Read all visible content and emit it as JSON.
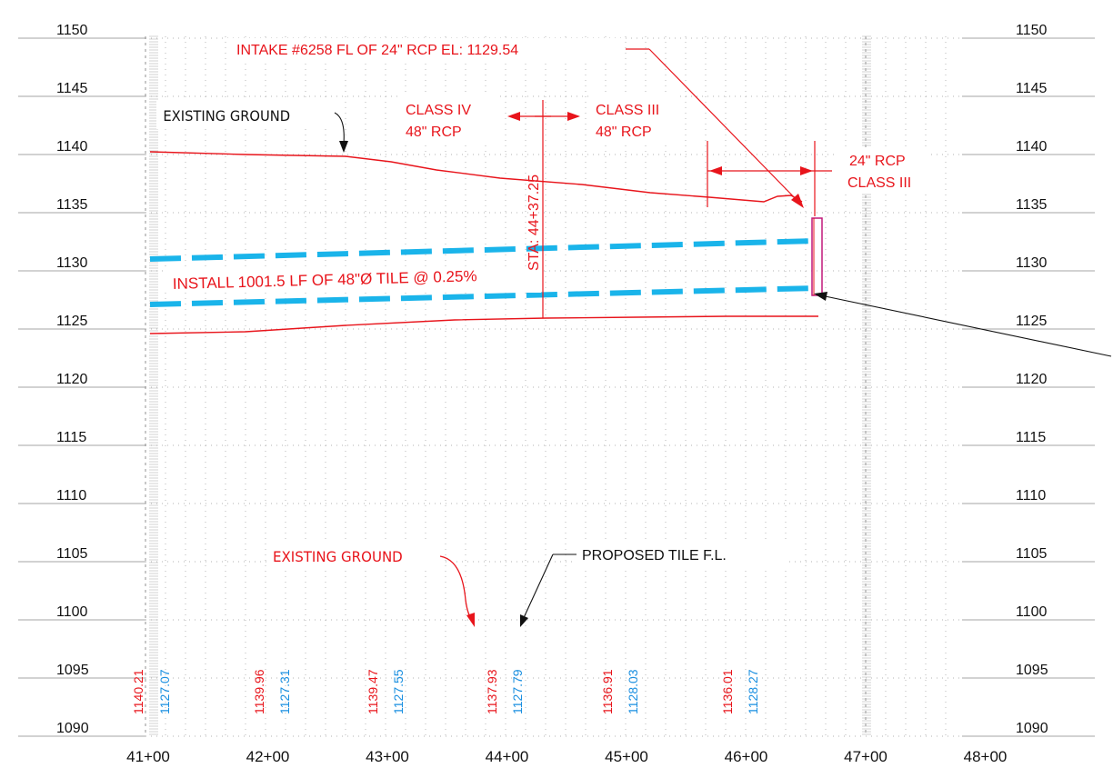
{
  "profile": {
    "elevation_labels": [
      "1150",
      "1145",
      "1140",
      "1135",
      "1130",
      "1125",
      "1120",
      "1115",
      "1110",
      "1105",
      "1100",
      "1095",
      "1090"
    ],
    "station_labels": [
      "41+00",
      "42+00",
      "43+00",
      "44+00",
      "45+00",
      "46+00",
      "47+00",
      "48+00"
    ],
    "annotations": {
      "intake": "INTAKE #6258 FL OF 24\" RCP  EL: 1129.54",
      "existing_ground_top": "EXISTING GROUND",
      "class_iv": "CLASS IV",
      "class_iv_pipe": "48\" RCP",
      "class_iii": "CLASS III",
      "class_iii_pipe": "48\" RCP",
      "station_callout": "STA: 44+37.25",
      "rcp24": "24\" RCP",
      "rcp24_class": "CLASS III",
      "install": "INSTALL 1001.5 LF OF 48\"Ø TILE @ 0.25%",
      "existing_ground_bottom": "EXISTING GROUND",
      "proposed_tile": "PROPOSED TILE F.L."
    },
    "ground_values": [
      "1140.21",
      "1139.96",
      "1139.47",
      "1137.93",
      "1136.91",
      "1136.01"
    ],
    "tile_values": [
      "1127.07",
      "1127.31",
      "1127.55",
      "1127.79",
      "1128.03",
      "1128.27"
    ],
    "colors": {
      "ground": "#e8141b",
      "tile": "#1ab4ea",
      "tile_text": "#1a8fe0",
      "grid": "#9a9a9a"
    }
  }
}
